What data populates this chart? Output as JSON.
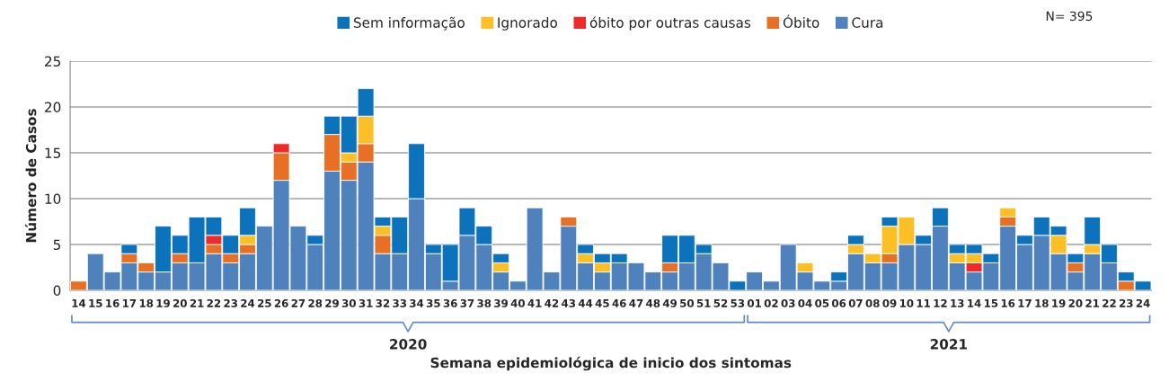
{
  "chart_data": {
    "type": "bar",
    "stacked": true,
    "xlabel": "Semana epidemiológica de inicio dos sintomas",
    "ylabel": "Número de Casos",
    "annotations": [
      "N= 395",
      "2020",
      "2021"
    ],
    "categories": [
      "14",
      "15",
      "16",
      "17",
      "18",
      "19",
      "20",
      "21",
      "22",
      "23",
      "24",
      "25",
      "26",
      "27",
      "28",
      "29",
      "30",
      "31",
      "32",
      "33",
      "34",
      "35",
      "36",
      "37",
      "38",
      "39",
      "40",
      "41",
      "42",
      "43",
      "44",
      "45",
      "46",
      "47",
      "48",
      "49",
      "50",
      "51",
      "52",
      "53",
      "01",
      "02",
      "03",
      "04",
      "05",
      "06",
      "07",
      "08",
      "09",
      "10",
      "11",
      "12",
      "13",
      "14",
      "15",
      "16",
      "17",
      "18",
      "19",
      "20",
      "21",
      "22",
      "23",
      "24"
    ],
    "series": [
      {
        "name": "Cura",
        "color": "#4f81bd",
        "values": [
          0,
          4,
          2,
          3,
          2,
          2,
          3,
          3,
          4,
          3,
          4,
          7,
          12,
          7,
          5,
          13,
          12,
          14,
          4,
          4,
          10,
          4,
          1,
          6,
          5,
          2,
          1,
          9,
          2,
          7,
          3,
          2,
          3,
          3,
          2,
          2,
          3,
          4,
          3,
          0,
          2,
          1,
          5,
          2,
          1,
          1,
          4,
          3,
          3,
          5,
          5,
          7,
          3,
          2,
          3,
          7,
          5,
          6,
          4,
          2,
          4,
          3,
          0,
          0
        ]
      },
      {
        "name": "Óbito",
        "color": "#e87025",
        "values": [
          1,
          0,
          0,
          1,
          1,
          0,
          1,
          0,
          1,
          1,
          1,
          0,
          3,
          0,
          0,
          4,
          2,
          2,
          2,
          0,
          0,
          0,
          0,
          0,
          0,
          0,
          0,
          0,
          0,
          1,
          0,
          0,
          0,
          0,
          0,
          1,
          0,
          0,
          0,
          0,
          0,
          0,
          0,
          0,
          0,
          0,
          0,
          0,
          1,
          0,
          0,
          0,
          0,
          0,
          0,
          1,
          0,
          0,
          0,
          1,
          0,
          0,
          1,
          0
        ]
      },
      {
        "name": "óbito por outras causas",
        "color": "#ee2a2a",
        "values": [
          0,
          0,
          0,
          0,
          0,
          0,
          0,
          0,
          1,
          0,
          0,
          0,
          1,
          0,
          0,
          0,
          0,
          0,
          0,
          0,
          0,
          0,
          0,
          0,
          0,
          0,
          0,
          0,
          0,
          0,
          0,
          0,
          0,
          0,
          0,
          0,
          0,
          0,
          0,
          0,
          0,
          0,
          0,
          0,
          0,
          0,
          0,
          0,
          0,
          0,
          0,
          0,
          0,
          1,
          0,
          0,
          0,
          0,
          0,
          0,
          0,
          0,
          0,
          0
        ]
      },
      {
        "name": "Ignorado",
        "color": "#fdbf26",
        "values": [
          0,
          0,
          0,
          0,
          0,
          0,
          0,
          0,
          0,
          0,
          1,
          0,
          0,
          0,
          0,
          0,
          1,
          3,
          1,
          0,
          0,
          0,
          0,
          0,
          0,
          1,
          0,
          0,
          0,
          0,
          1,
          1,
          0,
          0,
          0,
          0,
          0,
          0,
          0,
          0,
          0,
          0,
          0,
          1,
          0,
          0,
          1,
          1,
          3,
          3,
          0,
          0,
          1,
          1,
          0,
          1,
          0,
          0,
          2,
          0,
          1,
          0,
          0,
          0
        ]
      },
      {
        "name": "Sem informação",
        "color": "#0b72bb",
        "values": [
          0,
          0,
          0,
          1,
          0,
          5,
          2,
          5,
          2,
          2,
          3,
          0,
          0,
          0,
          1,
          2,
          4,
          3,
          1,
          4,
          6,
          1,
          4,
          3,
          2,
          1,
          0,
          0,
          0,
          0,
          1,
          1,
          1,
          0,
          0,
          3,
          3,
          1,
          0,
          1,
          0,
          0,
          0,
          0,
          0,
          1,
          1,
          0,
          1,
          0,
          1,
          2,
          1,
          1,
          1,
          0,
          1,
          2,
          1,
          1,
          3,
          2,
          1,
          1
        ]
      }
    ],
    "ylim": [
      0,
      25
    ],
    "yticks": [
      0,
      5,
      10,
      15,
      20,
      25
    ],
    "grid": "y",
    "legend": "top"
  }
}
